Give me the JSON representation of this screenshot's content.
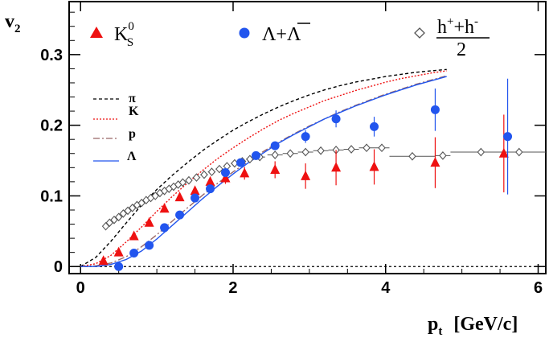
{
  "chart_data": {
    "type": "scatter",
    "title": "",
    "xlabel": "p",
    "xlabel_sub": "t",
    "xlabel_units": "[GeV/c]",
    "ylabel": "v",
    "ylabel_sub": "2",
    "xlim": [
      -0.15,
      6.1
    ],
    "ylim": [
      -0.01,
      0.375
    ],
    "x_ticks": [
      0,
      2,
      4,
      6
    ],
    "x_tick_labels": [
      "0",
      "2",
      "4",
      "6"
    ],
    "y_ticks": [
      0,
      0.1,
      0.2,
      0.3
    ],
    "y_tick_labels": [
      "0",
      "0.1",
      "0.2",
      "0.3"
    ],
    "grid": false,
    "series": [
      {
        "name": "K0S",
        "marker": "triangle",
        "color": "#ee1111",
        "points": [
          {
            "x": 0.3,
            "y": 0.008,
            "err": 0.003
          },
          {
            "x": 0.5,
            "y": 0.02,
            "err": 0.003
          },
          {
            "x": 0.7,
            "y": 0.043,
            "err": 0.003
          },
          {
            "x": 0.9,
            "y": 0.062,
            "err": 0.004
          },
          {
            "x": 1.1,
            "y": 0.082,
            "err": 0.004
          },
          {
            "x": 1.3,
            "y": 0.098,
            "err": 0.005
          },
          {
            "x": 1.5,
            "y": 0.107,
            "err": 0.006
          },
          {
            "x": 1.7,
            "y": 0.12,
            "err": 0.007
          },
          {
            "x": 1.9,
            "y": 0.125,
            "err": 0.008
          },
          {
            "x": 2.15,
            "y": 0.132,
            "err": 0.009
          },
          {
            "x": 2.55,
            "y": 0.137,
            "err": 0.012
          },
          {
            "x": 2.95,
            "y": 0.128,
            "err": 0.018
          },
          {
            "x": 3.35,
            "y": 0.14,
            "err": 0.025
          },
          {
            "x": 3.85,
            "y": 0.141,
            "err": 0.025
          },
          {
            "x": 4.65,
            "y": 0.147,
            "err": 0.036
          },
          {
            "x": 5.55,
            "y": 0.16,
            "err": 0.055
          }
        ]
      },
      {
        "name": "Lambda+AntiLambda",
        "marker": "circle",
        "color": "#2255ee",
        "points": [
          {
            "x": 0.5,
            "y": 0.0,
            "err": 0.004
          },
          {
            "x": 0.7,
            "y": 0.019,
            "err": 0.004
          },
          {
            "x": 0.9,
            "y": 0.03,
            "err": 0.004
          },
          {
            "x": 1.1,
            "y": 0.055,
            "err": 0.004
          },
          {
            "x": 1.3,
            "y": 0.073,
            "err": 0.004
          },
          {
            "x": 1.5,
            "y": 0.097,
            "err": 0.004
          },
          {
            "x": 1.7,
            "y": 0.11,
            "err": 0.005
          },
          {
            "x": 1.9,
            "y": 0.133,
            "err": 0.005
          },
          {
            "x": 2.1,
            "y": 0.147,
            "err": 0.005
          },
          {
            "x": 2.3,
            "y": 0.157,
            "err": 0.006
          },
          {
            "x": 2.55,
            "y": 0.171,
            "err": 0.006
          },
          {
            "x": 2.95,
            "y": 0.184,
            "err": 0.009
          },
          {
            "x": 3.35,
            "y": 0.209,
            "err": 0.012
          },
          {
            "x": 3.85,
            "y": 0.198,
            "err": 0.014
          },
          {
            "x": 4.65,
            "y": 0.222,
            "err": 0.03
          },
          {
            "x": 5.6,
            "y": 0.184,
            "err": 0.082
          }
        ]
      },
      {
        "name": "(h+ + h-)/2",
        "marker": "diamond",
        "color": "#555555",
        "points": [
          {
            "x": 0.33,
            "y": 0.057,
            "xerr": 0.03
          },
          {
            "x": 0.38,
            "y": 0.062,
            "xerr": 0.03
          },
          {
            "x": 0.44,
            "y": 0.066,
            "xerr": 0.03
          },
          {
            "x": 0.5,
            "y": 0.07,
            "xerr": 0.03
          },
          {
            "x": 0.56,
            "y": 0.075,
            "xerr": 0.03
          },
          {
            "x": 0.62,
            "y": 0.079,
            "xerr": 0.03
          },
          {
            "x": 0.68,
            "y": 0.083,
            "xerr": 0.03
          },
          {
            "x": 0.74,
            "y": 0.087,
            "xerr": 0.03
          },
          {
            "x": 0.8,
            "y": 0.09,
            "xerr": 0.03
          },
          {
            "x": 0.86,
            "y": 0.094,
            "xerr": 0.03
          },
          {
            "x": 0.92,
            "y": 0.097,
            "xerr": 0.03
          },
          {
            "x": 0.98,
            "y": 0.1,
            "xerr": 0.03
          },
          {
            "x": 1.04,
            "y": 0.104,
            "xerr": 0.03
          },
          {
            "x": 1.1,
            "y": 0.107,
            "xerr": 0.03
          },
          {
            "x": 1.16,
            "y": 0.11,
            "xerr": 0.03
          },
          {
            "x": 1.22,
            "y": 0.113,
            "xerr": 0.03
          },
          {
            "x": 1.28,
            "y": 0.116,
            "xerr": 0.03
          },
          {
            "x": 1.34,
            "y": 0.119,
            "xerr": 0.03
          },
          {
            "x": 1.42,
            "y": 0.122,
            "xerr": 0.04
          },
          {
            "x": 1.52,
            "y": 0.126,
            "xerr": 0.05
          },
          {
            "x": 1.62,
            "y": 0.13,
            "xerr": 0.05
          },
          {
            "x": 1.72,
            "y": 0.134,
            "xerr": 0.05
          },
          {
            "x": 1.82,
            "y": 0.138,
            "xerr": 0.05
          },
          {
            "x": 1.92,
            "y": 0.142,
            "xerr": 0.05
          },
          {
            "x": 2.02,
            "y": 0.146,
            "xerr": 0.05
          },
          {
            "x": 2.12,
            "y": 0.149,
            "xerr": 0.05
          },
          {
            "x": 2.22,
            "y": 0.152,
            "xerr": 0.05
          },
          {
            "x": 2.35,
            "y": 0.155,
            "xerr": 0.07
          },
          {
            "x": 2.55,
            "y": 0.158,
            "xerr": 0.1
          },
          {
            "x": 2.75,
            "y": 0.16,
            "xerr": 0.1
          },
          {
            "x": 2.95,
            "y": 0.162,
            "xerr": 0.1
          },
          {
            "x": 3.15,
            "y": 0.164,
            "xerr": 0.1
          },
          {
            "x": 3.35,
            "y": 0.165,
            "xerr": 0.1
          },
          {
            "x": 3.55,
            "y": 0.166,
            "xerr": 0.1
          },
          {
            "x": 3.75,
            "y": 0.168,
            "xerr": 0.1
          },
          {
            "x": 3.95,
            "y": 0.168,
            "xerr": 0.1
          },
          {
            "x": 4.35,
            "y": 0.156,
            "xerr": 0.3
          },
          {
            "x": 4.75,
            "y": 0.157,
            "xerr": 0.1
          },
          {
            "x": 5.25,
            "y": 0.162,
            "xerr": 0.4
          },
          {
            "x": 5.75,
            "y": 0.162,
            "xerr": 0.35
          }
        ]
      }
    ],
    "curves": [
      {
        "name": "pi",
        "color": "#000000",
        "dash": "4,3",
        "x": [
          0,
          0.2,
          0.4,
          0.6,
          0.8,
          1.0,
          1.2,
          1.4,
          1.6,
          1.8,
          2.0,
          2.2,
          2.4,
          2.6,
          2.8,
          3.0,
          3.2,
          3.4,
          3.6,
          3.8,
          4.0,
          4.2,
          4.4,
          4.6,
          4.8
        ],
        "y": [
          0,
          0.013,
          0.036,
          0.062,
          0.087,
          0.109,
          0.129,
          0.147,
          0.164,
          0.179,
          0.193,
          0.205,
          0.216,
          0.226,
          0.235,
          0.243,
          0.25,
          0.256,
          0.261,
          0.265,
          0.269,
          0.272,
          0.275,
          0.277,
          0.279
        ]
      },
      {
        "name": "K",
        "color": "#ee1111",
        "dash": "2,2",
        "x": [
          0,
          0.2,
          0.4,
          0.6,
          0.8,
          1.0,
          1.2,
          1.4,
          1.6,
          1.8,
          2.0,
          2.2,
          2.4,
          2.6,
          2.8,
          3.0,
          3.2,
          3.4,
          3.6,
          3.8,
          4.0,
          4.2,
          4.4,
          4.6,
          4.8
        ],
        "y": [
          0,
          0.004,
          0.016,
          0.035,
          0.056,
          0.078,
          0.099,
          0.118,
          0.136,
          0.153,
          0.168,
          0.182,
          0.195,
          0.207,
          0.217,
          0.226,
          0.235,
          0.242,
          0.249,
          0.255,
          0.261,
          0.266,
          0.27,
          0.274,
          0.277
        ]
      },
      {
        "name": "p",
        "color": "#996666",
        "dash": "8,3,2,3",
        "x": [
          0,
          0.2,
          0.4,
          0.6,
          0.8,
          1.0,
          1.2,
          1.4,
          1.6,
          1.8,
          2.0,
          2.2,
          2.4,
          2.6,
          2.8,
          3.0,
          3.2,
          3.4,
          3.6,
          3.8,
          4.0,
          4.2,
          4.4,
          4.6,
          4.8
        ],
        "y": [
          0,
          0.001,
          0.005,
          0.014,
          0.028,
          0.045,
          0.064,
          0.083,
          0.101,
          0.118,
          0.134,
          0.149,
          0.163,
          0.176,
          0.188,
          0.199,
          0.209,
          0.219,
          0.228,
          0.236,
          0.244,
          0.251,
          0.258,
          0.264,
          0.27
        ]
      },
      {
        "name": "Lambda",
        "color": "#2255ee",
        "dash": "",
        "x": [
          0,
          0.2,
          0.4,
          0.6,
          0.8,
          1.0,
          1.2,
          1.4,
          1.6,
          1.8,
          2.0,
          2.2,
          2.4,
          2.6,
          2.8,
          3.0,
          3.2,
          3.4,
          3.6,
          3.8,
          4.0,
          4.2,
          4.4,
          4.6,
          4.8
        ],
        "y": [
          0,
          0.0,
          0.003,
          0.01,
          0.022,
          0.039,
          0.058,
          0.077,
          0.096,
          0.114,
          0.131,
          0.147,
          0.161,
          0.175,
          0.187,
          0.198,
          0.209,
          0.218,
          0.227,
          0.235,
          0.243,
          0.25,
          0.257,
          0.263,
          0.269
        ]
      }
    ],
    "reference_lines": [
      {
        "name": "zero-line",
        "y": 0,
        "color": "#000000",
        "dash": "3,3"
      }
    ]
  },
  "legend": {
    "kshort": {
      "base": "K",
      "sup": "0",
      "sub": "S"
    },
    "lambda": {
      "label": "Λ+Λ"
    },
    "hadrons": {
      "numerator_base": "h",
      "numerator_sup1": "+",
      "plus": "+h",
      "numerator_sup2": "-",
      "denominator": "2"
    },
    "curve_labels": {
      "pi": "π",
      "k": "K",
      "p": "p",
      "lambda": "Λ"
    }
  }
}
